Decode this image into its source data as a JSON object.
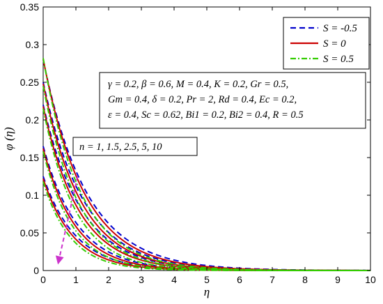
{
  "chart_data": {
    "type": "line",
    "xlabel": "η",
    "ylabel": "φ (η)",
    "xlim": [
      0,
      10
    ],
    "ylim": [
      0,
      0.35
    ],
    "xticks": [
      "0",
      "1",
      "2",
      "3",
      "4",
      "5",
      "6",
      "7",
      "8",
      "9",
      "10"
    ],
    "yticks": [
      "0",
      "0.05",
      "0.1",
      "0.15",
      "0.2",
      "0.25",
      "0.3",
      "0.35"
    ],
    "grid": false,
    "legend_position": "top-right",
    "legend": [
      {
        "label": "S = -0.5",
        "color": "#0000cc",
        "dash": "dashed"
      },
      {
        "label": "S = 0",
        "color": "#cc0000",
        "dash": "solid"
      },
      {
        "label": "S = 0.5",
        "color": "#33cc00",
        "dash": "dashdot"
      }
    ],
    "parameters_text": [
      "γ = 0.2, β = 0.6, M = 0.4, K = 0.2, Gr = 0.5,",
      "Gm = 0.4, δ = 0.2, Pr = 2, Rd = 0.4, Ec = 0.2,",
      "ε = 0.4, Sc = 0.62, Bi1 = 0.2, Bi2 = 0.4, R = 0.5"
    ],
    "n_label": "n = 1, 1.5, 2.5, 5, 10",
    "n_values": [
      1,
      1.5,
      2.5,
      5,
      10
    ],
    "series": [
      {
        "S": -0.5,
        "style": "dashed",
        "color": "#0000cc",
        "initial_values": [
          0.125,
          0.165,
          0.22,
          0.25,
          0.28
        ],
        "decay_rates": [
          1.0,
          0.95,
          0.85,
          0.8,
          0.75
        ]
      },
      {
        "S": 0,
        "style": "solid",
        "color": "#cc0000",
        "initial_values": [
          0.122,
          0.162,
          0.218,
          0.248,
          0.281
        ],
        "decay_rates": [
          1.08,
          1.02,
          0.92,
          0.86,
          0.8
        ]
      },
      {
        "S": 0.5,
        "style": "dashdot",
        "color": "#33cc00",
        "initial_values": [
          0.118,
          0.158,
          0.215,
          0.245,
          0.282
        ],
        "decay_rates": [
          1.18,
          1.1,
          1.0,
          0.93,
          0.87
        ]
      }
    ],
    "arrow_color": "#cc33cc"
  }
}
